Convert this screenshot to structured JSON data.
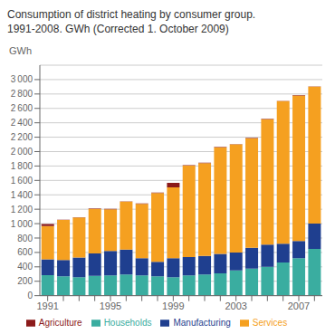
{
  "chart_data": {
    "type": "bar",
    "title": "Consumption of district heating by consumer group.\n1991-2008. GWh (Corrected 1. October 2009)",
    "ylabel": "GWh",
    "categories": [
      "1991",
      null,
      null,
      null,
      "1995",
      null,
      null,
      null,
      "1999",
      null,
      null,
      null,
      "2003",
      null,
      null,
      null,
      "2007",
      null
    ],
    "series": [
      {
        "name": "Households",
        "color": "#3aada0",
        "values": [
          285,
          270,
          255,
          275,
          280,
          295,
          280,
          270,
          255,
          280,
          295,
          310,
          350,
          375,
          400,
          460,
          520,
          650
        ]
      },
      {
        "name": "Manufacturing",
        "color": "#1f3f8f",
        "values": [
          220,
          225,
          275,
          310,
          340,
          345,
          240,
          200,
          265,
          255,
          255,
          270,
          250,
          290,
          310,
          260,
          240,
          350
        ]
      },
      {
        "name": "Services",
        "color": "#f5a020",
        "values": [
          460,
          555,
          555,
          620,
          580,
          665,
          755,
          955,
          985,
          1270,
          1290,
          1480,
          1500,
          1520,
          1740,
          1980,
          2020,
          1900
        ]
      },
      {
        "name": "Agriculture",
        "color": "#8b1a1a",
        "values": [
          30,
          5,
          5,
          5,
          5,
          5,
          5,
          5,
          60,
          5,
          5,
          5,
          5,
          5,
          5,
          5,
          5,
          5
        ]
      }
    ],
    "ylim": [
      0,
      3200
    ],
    "yticks": [
      0,
      200,
      400,
      600,
      800,
      {
        "value": 1000,
        "label": "1 000"
      },
      {
        "value": 1200,
        "label": "1 200"
      },
      {
        "value": 1400,
        "label": "1 400"
      },
      {
        "value": 1600,
        "label": "1 600"
      },
      {
        "value": 1800,
        "label": "1 800"
      },
      {
        "value": 2000,
        "label": "2 000"
      },
      {
        "value": 2200,
        "label": "2 200"
      },
      {
        "value": 2400,
        "label": "2 400"
      },
      {
        "value": 2600,
        "label": "2 600"
      },
      {
        "value": 2800,
        "label": "2 800"
      },
      {
        "value": 3000,
        "label": "3 000"
      }
    ],
    "stacked": true,
    "grid": true,
    "legend": "bottom"
  }
}
